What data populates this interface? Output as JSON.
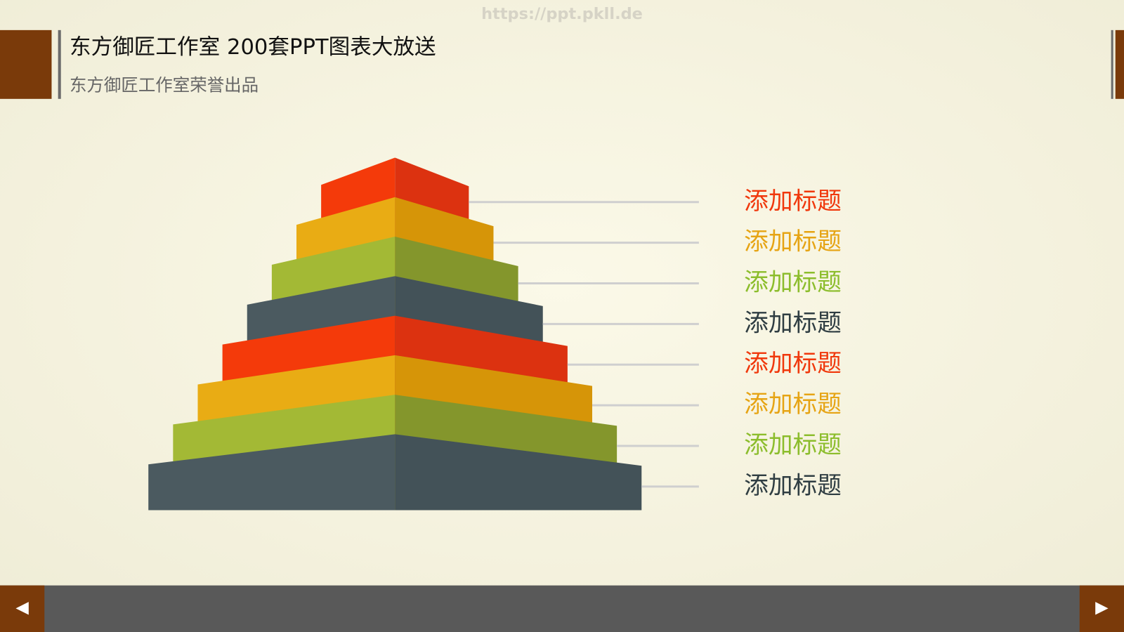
{
  "watermark": "https://ppt.pkll.de",
  "header": {
    "title": "东方御匠工作室 200套PPT图表大放送",
    "subtitle": "东方御匠工作室荣誉出品"
  },
  "levels": [
    {
      "label": "添加标题",
      "color": "#f0380c",
      "left_color": "#f43a0a",
      "right_color": "#dc3210"
    },
    {
      "label": "添加标题",
      "color": "#e6a414",
      "left_color": "#e9ac14",
      "right_color": "#d69508"
    },
    {
      "label": "添加标题",
      "color": "#8cbd2c",
      "left_color": "#a3b935",
      "right_color": "#84962c"
    },
    {
      "label": "添加标题",
      "color": "#2f3d42",
      "left_color": "#4b5a60",
      "right_color": "#435258"
    },
    {
      "label": "添加标题",
      "color": "#f0380c",
      "left_color": "#f43a0a",
      "right_color": "#dc3210"
    },
    {
      "label": "添加标题",
      "color": "#e6a414",
      "left_color": "#e9ac14",
      "right_color": "#d69508"
    },
    {
      "label": "添加标题",
      "color": "#8cbd2c",
      "left_color": "#a3b935",
      "right_color": "#84962c"
    },
    {
      "label": "添加标题",
      "color": "#2f3d42",
      "left_color": "#4b5a60",
      "right_color": "#435258"
    }
  ]
}
